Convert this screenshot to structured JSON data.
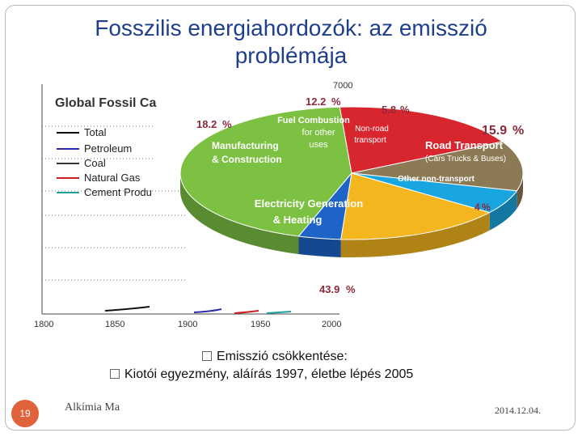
{
  "slide": {
    "title_line1": "Fosszilis energiahordozók: az emisszió",
    "title_line2": "problémája",
    "bullet1": "Emisszió csökkentése:",
    "bullet2": "Kiotói egyezmény, aláírás 1997, életbe lépés 2005",
    "footer_left": "Alkímia Ma",
    "footer_right": "2014.12.04.",
    "page_number": "19"
  },
  "background_chart": {
    "title": "Global Fossil Ca",
    "legend": [
      "Total",
      "Petroleum",
      "Coal",
      "Natural Gas",
      "Cement Produ"
    ],
    "x_ticks": [
      "1800",
      "1850",
      "1900",
      "1950",
      "2000"
    ],
    "y_top_label": "7000",
    "colors": [
      "#000000",
      "#2b2baa",
      "#2a2a2a",
      "#cc2020",
      "#20a0a0"
    ]
  },
  "chart_data": {
    "type": "pie",
    "slices": [
      {
        "label": "Electricity Generation & Heating",
        "value": 43.9,
        "color": "#7cc142"
      },
      {
        "label": "Manufacturing & Construction",
        "value": 18.2,
        "color": "#d8262f"
      },
      {
        "label": "Fuel Combustion for other uses",
        "value": 12.2,
        "color": "#8c7a55"
      },
      {
        "label": "Non-road transport",
        "value": 5.8,
        "color": "#19a6e0"
      },
      {
        "label": "Road Transport (Cars Trucks & Buses)",
        "value": 15.9,
        "color": "#f3b61f"
      },
      {
        "label": "Other non-transport",
        "value": 4,
        "color": "#1e64c8"
      }
    ]
  }
}
